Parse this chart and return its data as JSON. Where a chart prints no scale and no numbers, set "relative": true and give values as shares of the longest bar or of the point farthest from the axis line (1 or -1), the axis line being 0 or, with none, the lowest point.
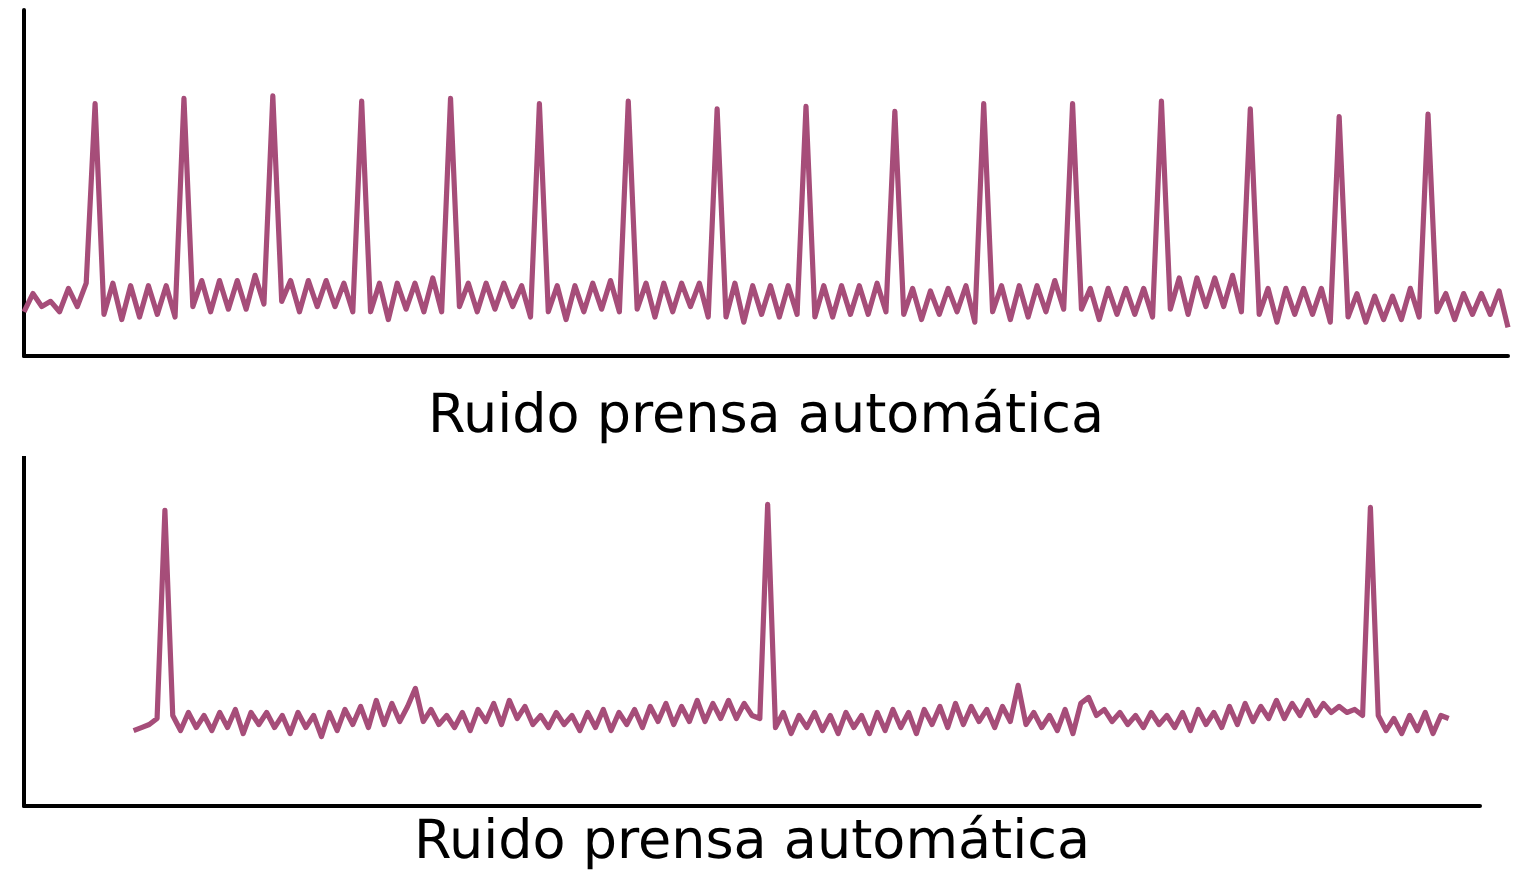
{
  "chart_data": [
    {
      "type": "line",
      "xlabel": "Ruido prensa automática",
      "relative": true,
      "tick_labels": false,
      "color": "#a64d79",
      "categories": [
        null,
        null,
        null,
        null,
        null,
        null,
        null,
        null,
        null,
        null,
        null,
        null,
        null,
        null,
        null,
        null,
        null,
        null,
        null,
        null,
        null,
        null,
        null,
        null,
        null,
        null,
        null,
        null,
        null,
        null,
        null,
        null,
        null,
        null,
        null,
        null,
        null,
        null,
        null,
        null,
        null,
        null,
        null,
        null,
        null,
        null,
        null,
        null,
        null,
        null,
        null,
        null,
        null,
        null,
        null,
        null,
        null,
        null,
        null,
        null,
        null,
        null,
        null,
        null,
        null,
        null,
        null,
        null,
        null,
        null,
        null,
        null,
        null,
        null,
        null,
        null,
        null,
        null,
        null,
        null,
        null,
        null,
        null,
        null,
        null,
        null,
        null,
        null,
        null,
        null,
        null,
        null,
        null,
        null,
        null,
        null,
        null,
        null,
        null,
        null,
        null,
        null,
        null,
        null,
        null,
        null,
        null,
        null,
        null,
        null,
        null,
        null,
        null,
        null,
        null,
        null,
        null,
        null,
        null,
        null,
        null,
        null,
        null,
        null,
        null,
        null,
        null,
        null,
        null,
        null,
        null,
        null,
        null,
        null,
        null,
        null,
        null,
        null,
        null,
        null,
        null,
        null,
        null,
        null,
        null,
        null,
        null,
        null,
        null,
        null,
        null,
        null,
        null,
        null,
        null,
        null,
        null,
        null,
        null,
        null,
        null,
        null,
        null,
        null,
        null,
        null,
        null,
        null
      ],
      "values": [
        0.17,
        0.24,
        0.19,
        0.21,
        0.17,
        0.26,
        0.19,
        0.28,
        0.97,
        0.16,
        0.28,
        0.14,
        0.27,
        0.15,
        0.27,
        0.16,
        0.27,
        0.15,
        0.99,
        0.19,
        0.29,
        0.17,
        0.29,
        0.18,
        0.29,
        0.18,
        0.31,
        0.2,
        1,
        0.21,
        0.29,
        0.17,
        0.29,
        0.19,
        0.29,
        0.19,
        0.28,
        0.17,
        0.98,
        0.17,
        0.28,
        0.14,
        0.28,
        0.18,
        0.28,
        0.17,
        0.3,
        0.17,
        0.99,
        0.19,
        0.28,
        0.17,
        0.28,
        0.18,
        0.28,
        0.19,
        0.27,
        0.15,
        0.97,
        0.17,
        0.27,
        0.14,
        0.27,
        0.17,
        0.28,
        0.18,
        0.29,
        0.17,
        0.98,
        0.18,
        0.28,
        0.15,
        0.28,
        0.17,
        0.28,
        0.19,
        0.28,
        0.15,
        0.95,
        0.15,
        0.28,
        0.13,
        0.27,
        0.16,
        0.27,
        0.15,
        0.27,
        0.16,
        0.96,
        0.15,
        0.27,
        0.15,
        0.27,
        0.16,
        0.27,
        0.16,
        0.28,
        0.17,
        0.94,
        0.16,
        0.26,
        0.14,
        0.25,
        0.16,
        0.26,
        0.17,
        0.27,
        0.13,
        0.97,
        0.17,
        0.27,
        0.14,
        0.27,
        0.15,
        0.27,
        0.17,
        0.29,
        0.18,
        0.97,
        0.18,
        0.26,
        0.14,
        0.26,
        0.16,
        0.26,
        0.16,
        0.26,
        0.15,
        0.98,
        0.18,
        0.3,
        0.16,
        0.3,
        0.19,
        0.3,
        0.19,
        0.31,
        0.17,
        0.95,
        0.16,
        0.26,
        0.13,
        0.26,
        0.16,
        0.26,
        0.16,
        0.26,
        0.13,
        0.92,
        0.15,
        0.24,
        0.13,
        0.23,
        0.14,
        0.23,
        0.14,
        0.26,
        0.15,
        0.93,
        0.17,
        0.24,
        0.14,
        0.24,
        0.16,
        0.24,
        0.16,
        0.25,
        0.11
      ]
    },
    {
      "type": "line",
      "xlabel": "Ruido prensa automática",
      "relative": true,
      "tick_labels": false,
      "color": "#a64d79",
      "categories": [
        null,
        null,
        null,
        null,
        null,
        null,
        null,
        null,
        null,
        null,
        null,
        null,
        null,
        null,
        null,
        null,
        null,
        null,
        null,
        null,
        null,
        null,
        null,
        null,
        null,
        null,
        null,
        null,
        null,
        null,
        null,
        null,
        null,
        null,
        null,
        null,
        null,
        null,
        null,
        null,
        null,
        null,
        null,
        null,
        null,
        null,
        null,
        null,
        null,
        null,
        null,
        null,
        null,
        null,
        null,
        null,
        null,
        null,
        null,
        null,
        null,
        null,
        null,
        null,
        null,
        null,
        null,
        null,
        null,
        null,
        null,
        null,
        null,
        null,
        null,
        null,
        null,
        null,
        null,
        null,
        null,
        null,
        null,
        null,
        null,
        null,
        null,
        null,
        null,
        null,
        null,
        null,
        null,
        null,
        null,
        null,
        null,
        null,
        null,
        null,
        null,
        null,
        null,
        null,
        null,
        null,
        null,
        null,
        null,
        null,
        null,
        null,
        null,
        null,
        null,
        null,
        null,
        null,
        null,
        null,
        null,
        null,
        null,
        null,
        null,
        null,
        null,
        null,
        null,
        null,
        null,
        null,
        null,
        null,
        null,
        null,
        null,
        null,
        null,
        null,
        null,
        null,
        null,
        null,
        null,
        null,
        null,
        null,
        null,
        null,
        null,
        null,
        null,
        null,
        null,
        null,
        null,
        null,
        null,
        null,
        null,
        null,
        null,
        null,
        null,
        null,
        null,
        null,
        null,
        null,
        null,
        null,
        null,
        null,
        null,
        null,
        null,
        null,
        null,
        null,
        null,
        null,
        null,
        null,
        null,
        null,
        null
      ],
      "values": [
        null,
        null,
        null,
        null,
        null,
        null,
        null,
        null,
        null,
        null,
        null,
        null,
        null,
        null,
        0.25,
        0.26,
        0.27,
        0.29,
        0.98,
        0.3,
        0.25,
        0.31,
        0.26,
        0.3,
        0.25,
        0.31,
        0.26,
        0.32,
        0.24,
        0.31,
        0.27,
        0.31,
        0.26,
        0.3,
        0.24,
        0.31,
        0.26,
        0.3,
        0.23,
        0.31,
        0.25,
        0.32,
        0.27,
        0.33,
        0.26,
        0.35,
        0.27,
        0.34,
        0.28,
        0.33,
        0.39,
        0.28,
        0.32,
        0.27,
        0.3,
        0.26,
        0.31,
        0.25,
        0.32,
        0.28,
        0.34,
        0.27,
        0.35,
        0.29,
        0.33,
        0.27,
        0.3,
        0.26,
        0.31,
        0.27,
        0.3,
        0.25,
        0.31,
        0.26,
        0.32,
        0.25,
        0.31,
        0.27,
        0.32,
        0.26,
        0.33,
        0.28,
        0.34,
        0.27,
        0.33,
        0.28,
        0.35,
        0.28,
        0.34,
        0.29,
        0.35,
        0.29,
        0.34,
        0.3,
        0.29,
        1,
        0.26,
        0.31,
        0.24,
        0.3,
        0.26,
        0.31,
        0.25,
        0.3,
        0.24,
        0.31,
        0.26,
        0.3,
        0.24,
        0.31,
        0.25,
        0.32,
        0.26,
        0.31,
        0.24,
        0.32,
        0.27,
        0.33,
        0.26,
        0.34,
        0.27,
        0.33,
        0.28,
        0.32,
        0.26,
        0.33,
        0.28,
        0.4,
        0.27,
        0.31,
        0.26,
        0.3,
        0.25,
        0.32,
        0.24,
        0.34,
        0.36,
        0.3,
        0.32,
        0.28,
        0.31,
        0.27,
        0.3,
        0.26,
        0.31,
        0.27,
        0.3,
        0.26,
        0.31,
        0.25,
        0.32,
        0.27,
        0.31,
        0.26,
        0.33,
        0.27,
        0.34,
        0.28,
        0.33,
        0.29,
        0.35,
        0.29,
        0.34,
        0.3,
        0.35,
        0.3,
        0.34,
        0.31,
        0.33,
        0.31,
        0.32,
        0.3,
        0.99,
        0.3,
        0.25,
        0.29,
        0.24,
        0.3,
        0.25,
        0.31,
        0.24,
        0.3,
        0.29,
        null,
        null,
        null,
        null
      ]
    }
  ]
}
